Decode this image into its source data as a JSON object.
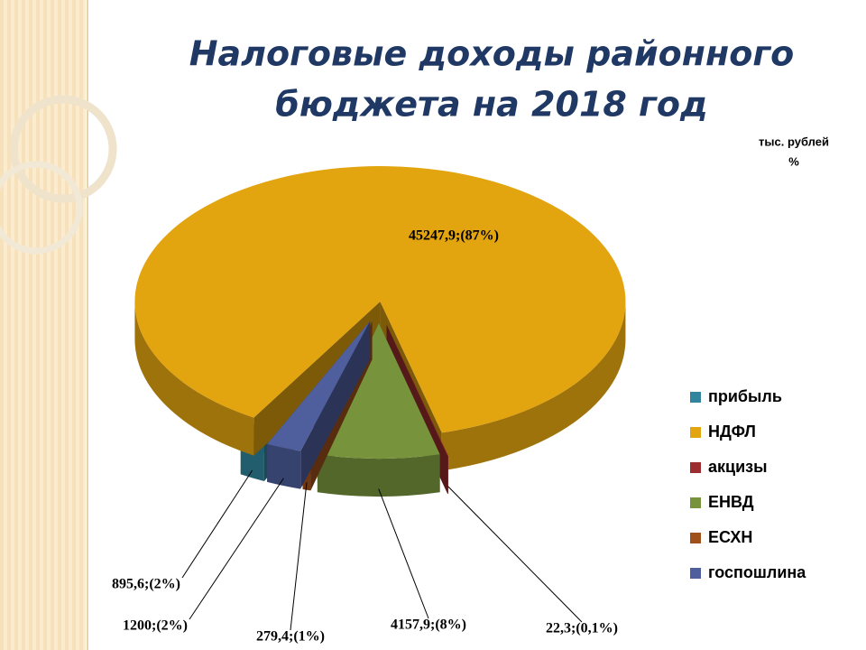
{
  "chart_data": {
    "type": "pie",
    "title": [
      "Налоговые доходы районного",
      "бюджета на 2018 год"
    ],
    "unit_label": [
      "тыс. рублей",
      "%"
    ],
    "categories": [
      "прибыль",
      "НДФЛ",
      "акцизы",
      "ЕНВД",
      "ЕСХН",
      "госпошлина"
    ],
    "values": [
      895.6,
      45247.9,
      22.3,
      4157.9,
      279.4,
      1200
    ],
    "value_labels": [
      "895,6;(2%)",
      "45247,9;(87%)",
      "22,3;(0,1%)",
      "4157,9;(8%)",
      "279,4;(1%)",
      "1200;(2%)"
    ],
    "colors": [
      "#31859c",
      "#e2a40f",
      "#9b2d30",
      "#77933c",
      "#a0501a",
      "#4f5f9e"
    ],
    "legend": "right"
  }
}
